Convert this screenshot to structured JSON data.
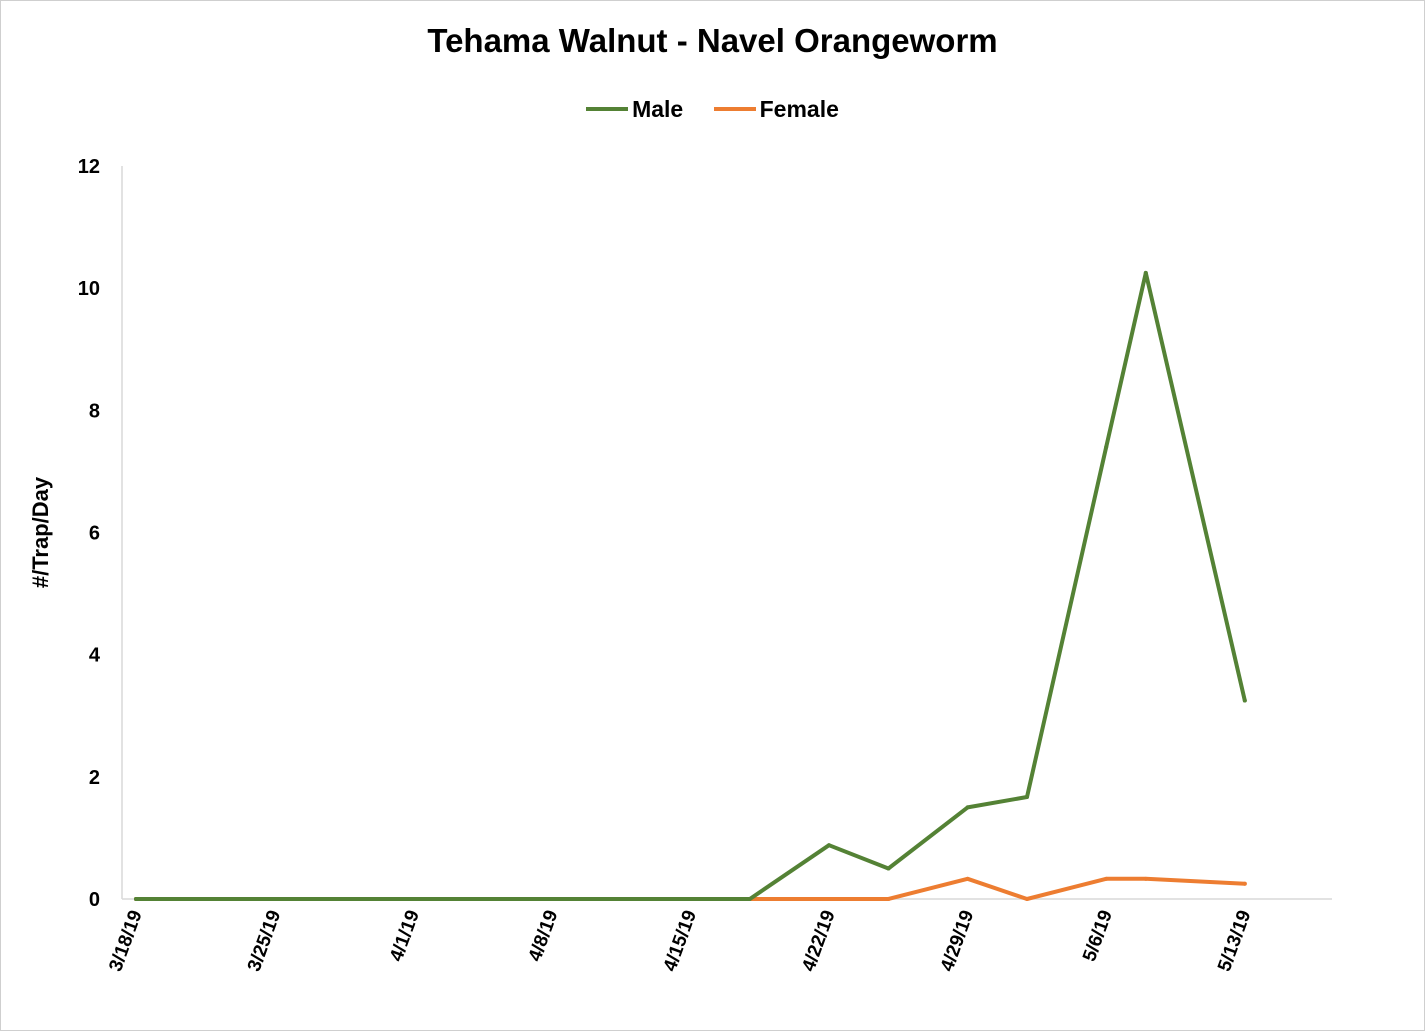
{
  "chart_data": {
    "type": "line",
    "title": "Tehama Walnut - Navel Orangeworm",
    "xlabel": "",
    "ylabel": "#/Trap/Day",
    "ylim": [
      0,
      12
    ],
    "yticks": [
      0,
      2,
      4,
      6,
      8,
      10,
      12
    ],
    "x_tick_labels": [
      "3/18/19",
      "3/25/19",
      "4/1/19",
      "4/8/19",
      "4/15/19",
      "4/22/19",
      "4/29/19",
      "5/6/19",
      "5/13/19"
    ],
    "x_tick_days": [
      0,
      7,
      14,
      21,
      28,
      35,
      42,
      49,
      56
    ],
    "xlim_days": [
      0,
      60
    ],
    "grid": false,
    "legend_position": "top",
    "series": [
      {
        "name": "Male",
        "color": "#548235",
        "x": [
          0,
          31,
          35,
          38,
          42,
          45,
          49,
          51,
          56
        ],
        "values": [
          0,
          0,
          0.88,
          0.5,
          1.5,
          1.67,
          7.4,
          10.25,
          3.25
        ]
      },
      {
        "name": "Female",
        "color": "#ED7D31",
        "x": [
          0,
          38,
          42,
          45,
          49,
          51,
          56
        ],
        "values": [
          0,
          0,
          0.33,
          0,
          0.33,
          0.33,
          0.25
        ]
      }
    ]
  }
}
